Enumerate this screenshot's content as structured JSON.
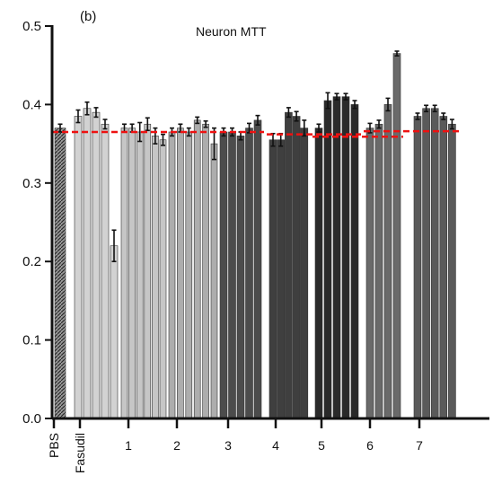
{
  "chart_data": {
    "type": "bar",
    "panel_label": "(b)",
    "title": "Neuron MTT",
    "xlabel": "",
    "ylabel": "",
    "ylim": [
      0,
      0.5
    ],
    "yticks": [
      "0.0",
      "0.1",
      "0.2",
      "0.3",
      "0.4",
      "0.5"
    ],
    "grid": false,
    "legend": "none",
    "reference_line": {
      "color": "#ee1111",
      "style": "dashed"
    },
    "groups": [
      {
        "label": "PBS",
        "color": "#9a9a9a",
        "hatched": true,
        "values": [
          0.37
        ],
        "errors": [
          0.005
        ]
      },
      {
        "label": "Fasudil",
        "color": "#d2d2d2",
        "values": [
          0.385,
          0.395,
          0.39,
          0.375,
          0.22
        ],
        "errors": [
          0.008,
          0.008,
          0.006,
          0.006,
          0.02
        ]
      },
      {
        "label": "1",
        "color": "#c6c6c6",
        "values": [
          0.37,
          0.37,
          0.365,
          0.375,
          0.36,
          0.355
        ],
        "errors": [
          0.005,
          0.005,
          0.012,
          0.008,
          0.01,
          0.007
        ]
      },
      {
        "label": "2",
        "color": "#adadad",
        "values": [
          0.365,
          0.37,
          0.365,
          0.38,
          0.375,
          0.35
        ],
        "errors": [
          0.005,
          0.005,
          0.005,
          0.004,
          0.004,
          0.02
        ]
      },
      {
        "label": "3",
        "color": "#4c4c4c",
        "values": [
          0.365,
          0.365,
          0.36,
          0.37,
          0.38
        ],
        "errors": [
          0.005,
          0.005,
          0.005,
          0.006,
          0.006
        ]
      },
      {
        "label": "4",
        "color": "#3f3f3f",
        "values": [
          0.355,
          0.355,
          0.39,
          0.385,
          0.37
        ],
        "errors": [
          0.008,
          0.008,
          0.006,
          0.006,
          0.01
        ]
      },
      {
        "label": "5",
        "color": "#2a2a2a",
        "values": [
          0.37,
          0.405,
          0.41,
          0.41,
          0.4
        ],
        "errors": [
          0.005,
          0.01,
          0.004,
          0.004,
          0.005
        ]
      },
      {
        "label": "6",
        "color": "#6a6a6a",
        "values": [
          0.37,
          0.375,
          0.4,
          0.465
        ],
        "errors": [
          0.006,
          0.005,
          0.008,
          0.003
        ]
      },
      {
        "label": "7",
        "color": "#5a5a5a",
        "values": [
          0.385,
          0.395,
          0.395,
          0.385,
          0.375
        ],
        "errors": [
          0.004,
          0.004,
          0.004,
          0.004,
          0.006
        ]
      }
    ],
    "reference_segments": [
      {
        "x_from": "PBS",
        "x_to": "3",
        "value": 0.365
      },
      {
        "x_from": "4",
        "x_to": "5",
        "value": 0.362
      },
      {
        "x_from": "5",
        "x_to": "6",
        "value": 0.359
      },
      {
        "x_from": "6",
        "x_to": "7",
        "value": 0.366
      }
    ]
  }
}
